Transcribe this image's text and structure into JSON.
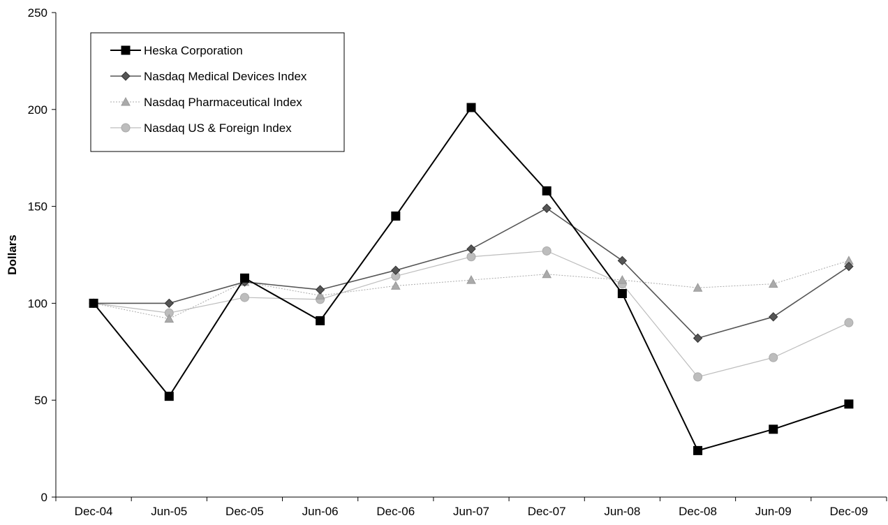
{
  "chart_data": {
    "type": "line",
    "title": "",
    "xlabel": "",
    "ylabel": "Dollars",
    "ylim": [
      0,
      250
    ],
    "yticks": [
      0,
      50,
      100,
      150,
      200,
      250
    ],
    "categories": [
      "Dec-04",
      "Jun-05",
      "Dec-05",
      "Jun-06",
      "Dec-06",
      "Jun-07",
      "Dec-07",
      "Jun-08",
      "Dec-08",
      "Jun-09",
      "Dec-09"
    ],
    "grid": false,
    "legend_position": "top-left",
    "series": [
      {
        "name": "Heska Corporation",
        "marker": "square",
        "color": "#000000",
        "values": [
          100,
          52,
          113,
          91,
          145,
          201,
          158,
          105,
          24,
          35,
          48
        ]
      },
      {
        "name": "Nasdaq Medical Devices Index",
        "marker": "diamond",
        "color": "#555555",
        "values": [
          100,
          100,
          111,
          107,
          117,
          128,
          149,
          122,
          82,
          93,
          119
        ]
      },
      {
        "name": "Nasdaq Pharmaceutical Index",
        "marker": "triangle",
        "color": "#aaaaaa",
        "values": [
          100,
          92,
          111,
          104,
          109,
          112,
          115,
          112,
          108,
          110,
          122
        ]
      },
      {
        "name": "Nasdaq US & Foreign Index",
        "marker": "circle",
        "color": "#bdbdbd",
        "values": [
          100,
          95,
          103,
          102,
          114,
          124,
          127,
          110,
          62,
          72,
          90
        ]
      }
    ]
  }
}
